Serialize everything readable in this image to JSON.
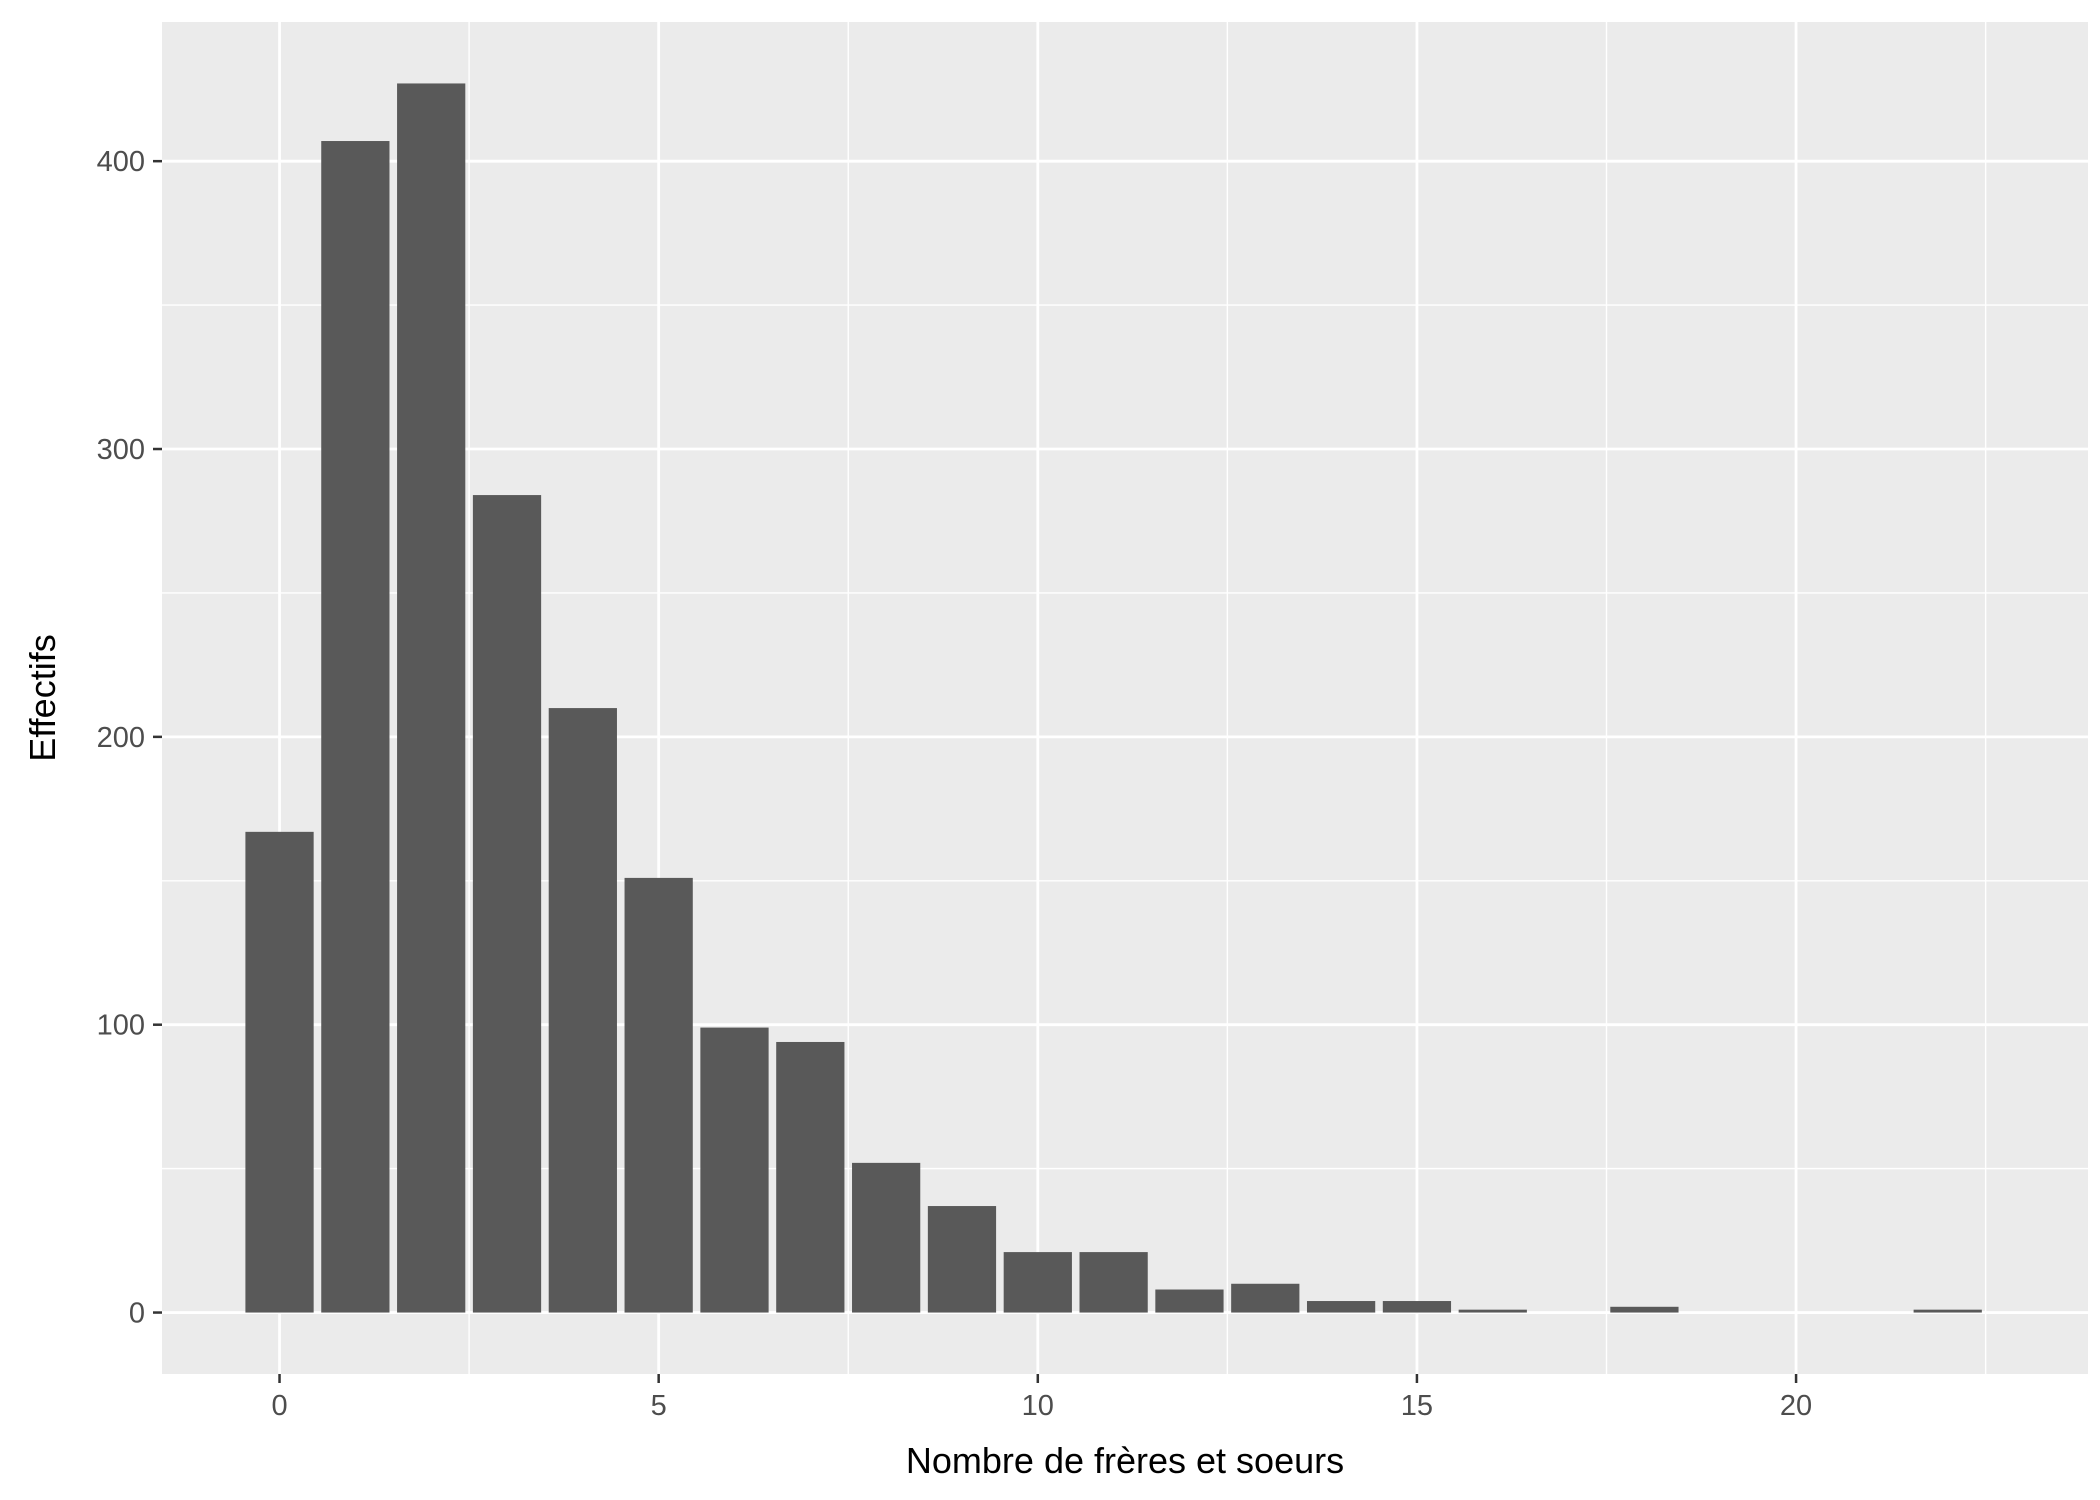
{
  "chart_data": {
    "type": "bar",
    "title": "",
    "xlabel": "Nombre de frères et soeurs",
    "ylabel": "Effectifs",
    "x": [
      0,
      1,
      2,
      3,
      4,
      5,
      6,
      7,
      8,
      9,
      10,
      11,
      12,
      13,
      14,
      15,
      16,
      18,
      22
    ],
    "values": [
      167,
      407,
      427,
      284,
      210,
      151,
      99,
      94,
      52,
      37,
      21,
      21,
      8,
      10,
      4,
      4,
      1,
      2,
      1
    ],
    "xlim": [
      -1.55,
      23.85
    ],
    "ylim": [
      -21.35,
      448.35
    ],
    "x_ticks": [
      0,
      5,
      10,
      15,
      20
    ],
    "x_tick_labels": [
      "0",
      "5",
      "10",
      "15",
      "20"
    ],
    "x_minor_ticks": [
      2.5,
      7.5,
      12.5,
      17.5,
      22.5
    ],
    "y_ticks": [
      0,
      100,
      200,
      300,
      400
    ],
    "y_tick_labels": [
      "0",
      "100",
      "200",
      "300",
      "400"
    ],
    "y_minor_ticks": [
      50,
      150,
      250,
      350
    ],
    "grid": true,
    "legend": "none",
    "colors": {
      "panel_background": "#ebebeb",
      "grid_line": "#ffffff",
      "bar_fill": "#595959",
      "tick_label": "#4d4d4d",
      "tick_mark": "#333333",
      "axis_title": "#000000"
    }
  }
}
